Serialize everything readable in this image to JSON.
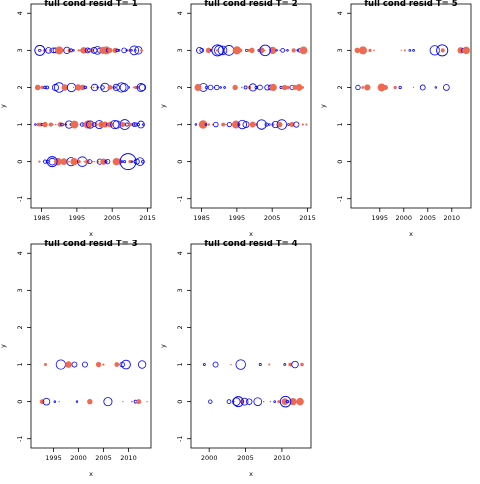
{
  "colors": {
    "pos": "#ee6a50",
    "neg": "#0000ff",
    "axis": "#000000"
  },
  "chart_data": [
    {
      "type": "scatter",
      "title": "full cond resid T= 1",
      "xlabel": "x",
      "ylabel": "y",
      "xlim": [
        1982,
        2016
      ],
      "ylim": [
        -1.25,
        4.25
      ],
      "xticks": [
        1985,
        1995,
        2005,
        2015
      ],
      "xtick_labels": [
        "1985",
        "1995",
        "2005",
        "2015"
      ],
      "yticks": [
        -1,
        0,
        1,
        2,
        3,
        4
      ],
      "ytick_labels": [
        "-1",
        "0",
        "1",
        "2",
        "3",
        "4"
      ],
      "grid": false,
      "legend": "none",
      "levels": [
        {
          "y": 3,
          "x_start": 1984,
          "x_end": 2014,
          "count": 46,
          "density": 0.9
        },
        {
          "y": 2,
          "x_start": 1983,
          "x_end": 2014,
          "count": 46,
          "density": 0.9
        },
        {
          "y": 1,
          "x_start": 1983,
          "x_end": 2014,
          "count": 50,
          "density": 0.95
        },
        {
          "y": 0,
          "x_start": 1984,
          "x_end": 2014,
          "count": 40,
          "density": 0.8
        }
      ],
      "highlights": [
        {
          "x": 2009.5,
          "y": 0,
          "sign": "neg",
          "size": 1.0
        },
        {
          "x": 1988,
          "y": 0,
          "sign": "neg",
          "size": 0.5
        },
        {
          "x": 1984.5,
          "y": 3,
          "sign": "neg",
          "size": 0.5
        },
        {
          "x": 1990,
          "y": 3,
          "sign": "pos",
          "size": 0.5
        }
      ]
    },
    {
      "type": "scatter",
      "title": "full cond resid T= 2",
      "xlabel": "x",
      "ylabel": "y",
      "xlim": [
        1982,
        2016
      ],
      "ylim": [
        -1.25,
        4.25
      ],
      "xticks": [
        1985,
        1995,
        2005,
        2015
      ],
      "xtick_labels": [
        "1985",
        "1995",
        "2005",
        "2015"
      ],
      "yticks": [
        -1,
        0,
        1,
        2,
        3,
        4
      ],
      "ytick_labels": [
        "-1",
        "0",
        "1",
        "2",
        "3",
        "4"
      ],
      "grid": false,
      "legend": "none",
      "levels": [
        {
          "y": 3,
          "x_start": 1983,
          "x_end": 2015,
          "count": 38,
          "density": 0.8
        },
        {
          "y": 2,
          "x_start": 1983,
          "x_end": 2015,
          "count": 32,
          "density": 0.7
        },
        {
          "y": 1,
          "x_start": 1983,
          "x_end": 2015,
          "count": 34,
          "density": 0.75
        }
      ],
      "highlights": [
        {
          "x": 1989.5,
          "y": 3,
          "sign": "neg",
          "size": 0.6
        },
        {
          "x": 2003,
          "y": 3,
          "sign": "neg",
          "size": 0.55
        },
        {
          "x": 2002,
          "y": 1,
          "sign": "neg",
          "size": 0.45
        },
        {
          "x": 1984,
          "y": 2,
          "sign": "pos",
          "size": 0.4
        }
      ]
    },
    {
      "type": "scatter",
      "title": "full cond resid T= 5",
      "xlabel": "x",
      "ylabel": "y",
      "xlim": [
        1989,
        2014
      ],
      "ylim": [
        -1.25,
        4.25
      ],
      "xticks": [
        1995,
        2000,
        2005,
        2010
      ],
      "xtick_labels": [
        "1995",
        "2000",
        "2005",
        "2010"
      ],
      "yticks": [
        -1,
        0,
        1,
        2,
        3,
        4
      ],
      "ytick_labels": [
        "-1",
        "0",
        "1",
        "2",
        "3",
        "4"
      ],
      "grid": false,
      "legend": "none",
      "levels": [
        {
          "y": 3,
          "x_start": 1990,
          "x_end": 2013,
          "count": 26,
          "density": 0.55
        },
        {
          "y": 2,
          "x_start": 1990,
          "x_end": 2013,
          "count": 24,
          "density": 0.5
        }
      ],
      "highlights": [
        {
          "x": 2008,
          "y": 3,
          "sign": "neg",
          "size": 0.6
        },
        {
          "x": 1991.5,
          "y": 3,
          "sign": "pos",
          "size": 0.5
        },
        {
          "x": 2013,
          "y": 3,
          "sign": "pos",
          "size": 0.45
        }
      ]
    },
    {
      "type": "scatter",
      "title": "full cond resid T= 3",
      "xlabel": "x",
      "ylabel": "y",
      "xlim": [
        1990.5,
        2014.5
      ],
      "ylim": [
        -1.25,
        4.25
      ],
      "xticks": [
        1995,
        2000,
        2005,
        2010
      ],
      "xtick_labels": [
        "1995",
        "2000",
        "2005",
        "2010"
      ],
      "yticks": [
        -1,
        0,
        1,
        2,
        3,
        4
      ],
      "ytick_labels": [
        "-1",
        "0",
        "1",
        "2",
        "3",
        "4"
      ],
      "grid": false,
      "legend": "none",
      "levels": [
        {
          "y": 1,
          "x_start": 1993,
          "x_end": 2014,
          "count": 22,
          "density": 0.5
        },
        {
          "y": 0,
          "x_start": 1991,
          "x_end": 2014,
          "count": 30,
          "density": 0.65
        }
      ],
      "highlights": [
        {
          "x": 2009.5,
          "y": 1,
          "sign": "neg",
          "size": 0.4
        },
        {
          "x": 1998,
          "y": 1,
          "sign": "pos",
          "size": 0.35
        }
      ]
    },
    {
      "type": "scatter",
      "title": "full cond resid T= 4",
      "xlabel": "x",
      "ylabel": "y",
      "xlim": [
        1997.5,
        2014
      ],
      "ylim": [
        -1.25,
        4.25
      ],
      "xticks": [
        2000,
        2005,
        2010
      ],
      "xtick_labels": [
        "2000",
        "2005",
        "2010"
      ],
      "yticks": [
        -1,
        0,
        1,
        2,
        3,
        4
      ],
      "ytick_labels": [
        "-1",
        "0",
        "1",
        "2",
        "3",
        "4"
      ],
      "grid": false,
      "legend": "none",
      "levels": [
        {
          "y": 1,
          "x_start": 1999,
          "x_end": 2013,
          "count": 20,
          "density": 0.45
        },
        {
          "y": 0,
          "x_start": 2000,
          "x_end": 2013,
          "count": 22,
          "density": 0.55
        }
      ],
      "highlights": [
        {
          "x": 2004,
          "y": 0,
          "sign": "neg",
          "size": 0.5
        },
        {
          "x": 2010.5,
          "y": 0,
          "sign": "neg",
          "size": 0.55
        },
        {
          "x": 2012.5,
          "y": 0,
          "sign": "pos",
          "size": 0.45
        }
      ]
    }
  ]
}
